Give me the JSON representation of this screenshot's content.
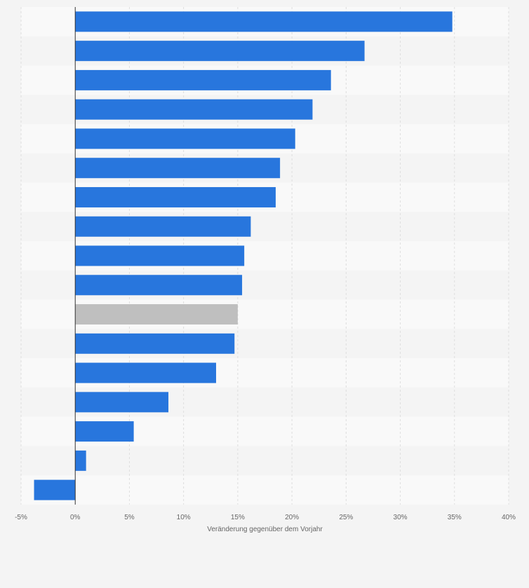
{
  "chart_data": {
    "type": "bar",
    "orientation": "horizontal",
    "title": "",
    "xlabel": "Veränderung gegenüber dem Vorjahr",
    "ylabel": "",
    "xlim": [
      -5,
      40
    ],
    "x_ticks": [
      -5,
      0,
      5,
      10,
      15,
      20,
      25,
      30,
      35,
      40
    ],
    "x_tick_labels": [
      "-5%",
      "0%",
      "5%",
      "10%",
      "15%",
      "20%",
      "25%",
      "30%",
      "35%",
      "40%"
    ],
    "categories": [
      "",
      "",
      "",
      "",
      "",
      "",
      "",
      "",
      "",
      "",
      "",
      "",
      "",
      "",
      "",
      "",
      ""
    ],
    "values": [
      34.8,
      26.7,
      23.6,
      21.9,
      20.3,
      18.9,
      18.5,
      16.2,
      15.6,
      15.4,
      15.0,
      14.7,
      13.0,
      8.6,
      5.4,
      1.0,
      -3.8
    ],
    "highlight_index": 10,
    "grid": true,
    "legend": "none",
    "colors": {
      "bar": "#2876dd",
      "highlight": "#bfbfbf",
      "band_light": "#f9f9f9",
      "band_dark": "#f4f4f4",
      "grid": "#dedede",
      "zero_line": "#333333"
    }
  }
}
